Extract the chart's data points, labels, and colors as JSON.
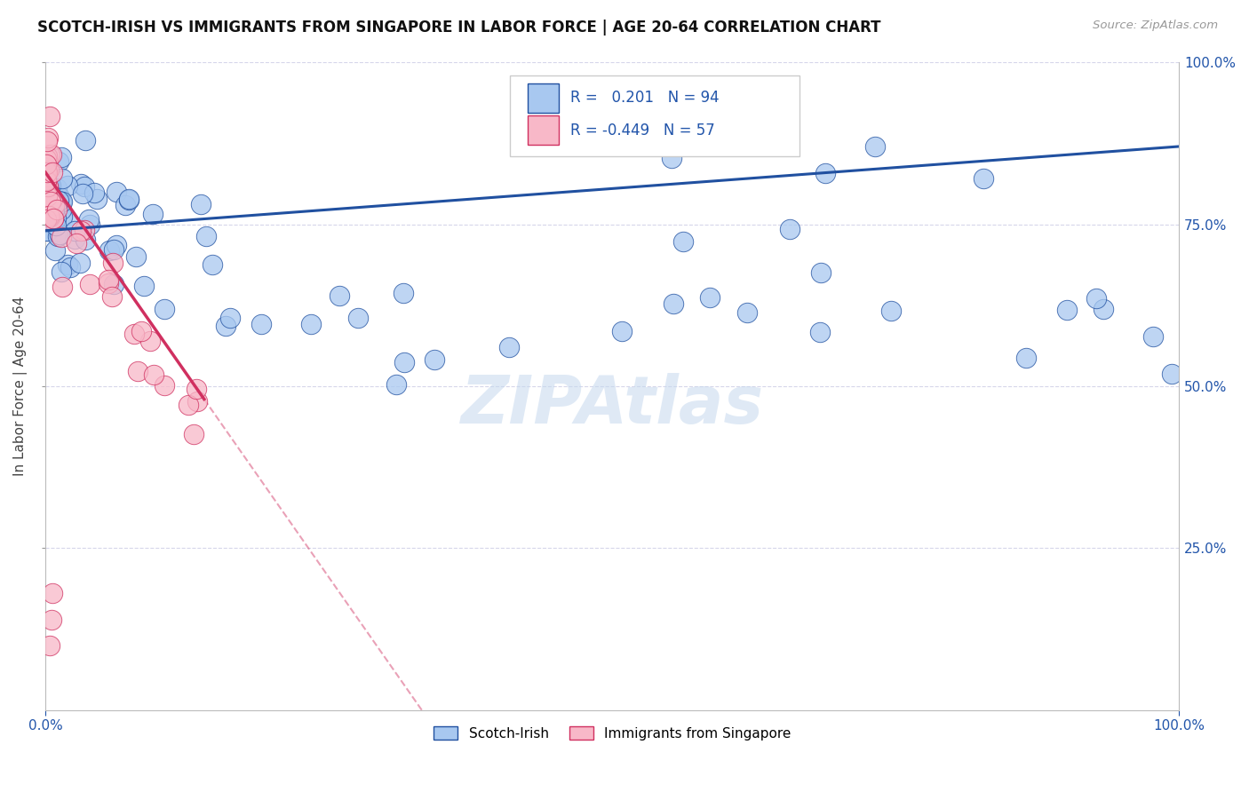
{
  "title": "SCOTCH-IRISH VS IMMIGRANTS FROM SINGAPORE IN LABOR FORCE | AGE 20-64 CORRELATION CHART",
  "source": "Source: ZipAtlas.com",
  "ylabel": "In Labor Force | Age 20-64",
  "r_blue": 0.201,
  "n_blue": 94,
  "r_pink": -0.449,
  "n_pink": 57,
  "legend_blue": "Scotch-Irish",
  "legend_pink": "Immigrants from Singapore",
  "blue_color": "#A8C8F0",
  "pink_color": "#F8B8C8",
  "trend_blue": "#2050A0",
  "trend_pink": "#D03060",
  "watermark": "ZIPAtlas",
  "right_yticklabels": [
    "25.0%",
    "50.0%",
    "75.0%",
    "100.0%"
  ],
  "right_ytick_vals": [
    0.25,
    0.5,
    0.75,
    1.0
  ]
}
